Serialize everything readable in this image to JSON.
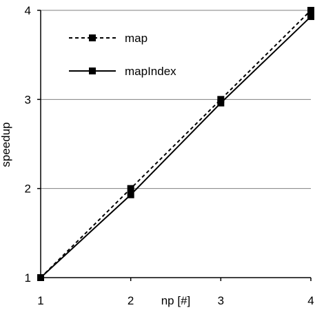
{
  "chart_data": {
    "type": "line",
    "title": "",
    "xlabel": "np [#]",
    "ylabel": "speedup",
    "x": [
      1,
      2,
      3,
      4
    ],
    "xlim": [
      1,
      4
    ],
    "ylim": [
      1,
      4
    ],
    "xticks": [
      "1",
      "2",
      "3",
      "4"
    ],
    "yticks": [
      "1",
      "2",
      "3",
      "4"
    ],
    "grid": "horizontal",
    "legend_position": "top-left",
    "series": [
      {
        "name": "map",
        "values": [
          1.0,
          2.0,
          3.0,
          4.0
        ],
        "style": "dashed",
        "marker": "square",
        "color": "#000000"
      },
      {
        "name": "mapIndex",
        "values": [
          1.0,
          1.93,
          2.96,
          3.93
        ],
        "style": "solid",
        "marker": "square",
        "color": "#000000"
      }
    ]
  }
}
